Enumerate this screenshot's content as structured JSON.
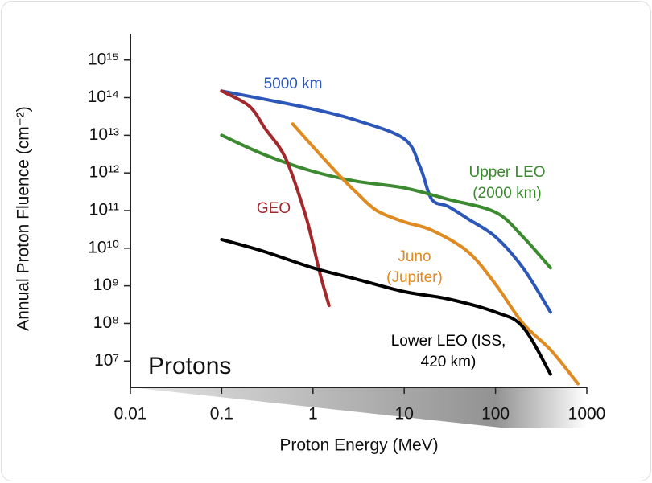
{
  "chart_data": {
    "type": "line",
    "y_label": "Annual Proton Fluence (cm⁻²)",
    "x_label": "Proton Energy (MeV)",
    "annotation": "Protons",
    "log_x": true,
    "log_y": true,
    "xlim": [
      0.01,
      1000
    ],
    "xticks": [
      0.01,
      0.1,
      1,
      10,
      100,
      1000
    ],
    "ylim": [
      2000000,
      5000000000000000
    ],
    "yticks": [
      {
        "value": 10000000,
        "label": "10⁷"
      },
      {
        "value": 100000000,
        "label": "10⁸"
      },
      {
        "value": 1000000000,
        "label": "10⁹"
      },
      {
        "value": 10000000000,
        "label": "10¹⁰"
      },
      {
        "value": 100000000000,
        "label": "10¹¹"
      },
      {
        "value": 1000000000000,
        "label": "10¹²"
      },
      {
        "value": 10000000000000,
        "label": "10¹³"
      },
      {
        "value": 100000000000000,
        "label": "10¹⁴"
      },
      {
        "value": 1000000000000000,
        "label": "10¹⁵"
      }
    ],
    "series": [
      {
        "name": "5000 km",
        "color": "#2c56b8",
        "x": [
          0.1,
          0.3,
          1,
          3,
          10,
          15,
          20,
          30,
          50,
          100,
          200,
          400
        ],
        "values": [
          150000000000000,
          90000000000000,
          50000000000000,
          25000000000000,
          8000000000000,
          1400000000000,
          200000000000,
          130000000000,
          60000000000,
          20000000000,
          3000000000,
          200000000
        ]
      },
      {
        "name": "Upper LEO (2000 km)",
        "color": "#3b8a2f",
        "x": [
          0.1,
          0.3,
          1,
          3,
          10,
          30,
          100,
          200,
          400
        ],
        "values": [
          10000000000000,
          3000000000000,
          1100000000000,
          600000000000,
          400000000000,
          200000000000,
          90000000000,
          20000000000,
          3000000000
        ]
      },
      {
        "name": "GEO",
        "color": "#a3282c",
        "x": [
          0.1,
          0.2,
          0.3,
          0.5,
          0.8,
          1,
          1.2,
          1.5
        ],
        "values": [
          150000000000000,
          60000000000000,
          15000000000000,
          2500000000000,
          100000000000,
          13000000000,
          2000000000,
          300000000
        ]
      },
      {
        "name": "Juno (Jupiter)",
        "color": "#e08b22",
        "x": [
          0.6,
          1,
          2,
          3,
          5,
          10,
          20,
          50,
          100,
          200,
          400,
          800
        ],
        "values": [
          20000000000000,
          5000000000000,
          800000000000,
          300000000000,
          100000000000,
          50000000000,
          30000000000,
          8000000000,
          1100000000,
          100000000,
          20000000,
          2500000
        ]
      },
      {
        "name": "Lower LEO (ISS, 420 km)",
        "color": "#000000",
        "x": [
          0.1,
          0.3,
          1,
          3,
          10,
          30,
          100,
          200,
          400
        ],
        "values": [
          17000000000,
          8000000000,
          3000000000,
          1500000000,
          700000000,
          450000000,
          200000000,
          80000000,
          4500000
        ]
      }
    ]
  }
}
